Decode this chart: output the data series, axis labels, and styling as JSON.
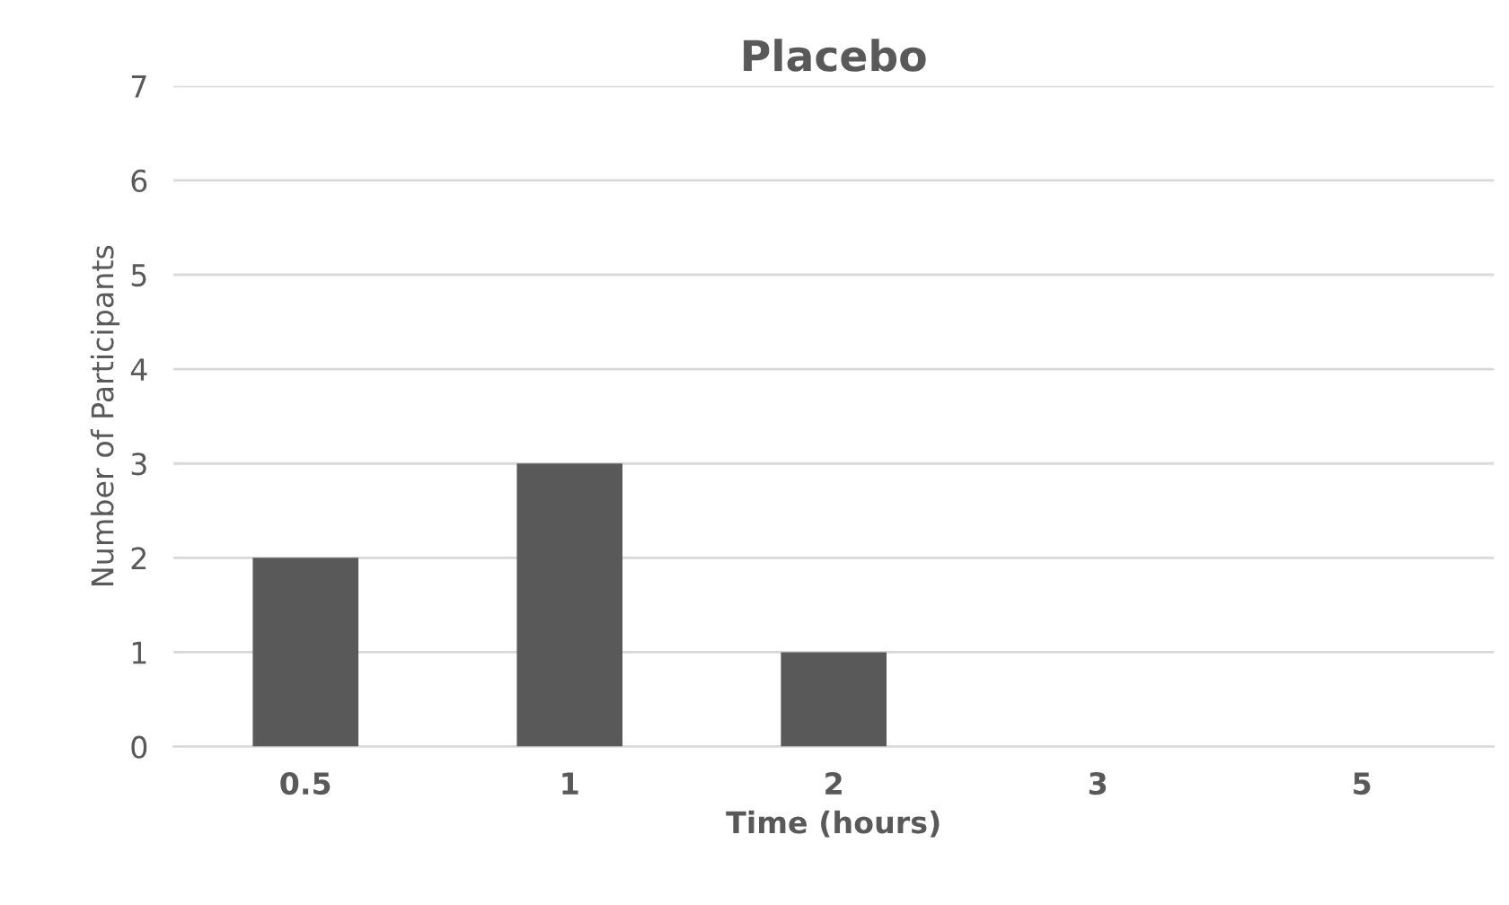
{
  "chart_data": {
    "type": "bar",
    "title": "Placebo",
    "xlabel": "Time (hours)",
    "ylabel": "Number of Participants",
    "categories": [
      "0.5",
      "1",
      "2",
      "3",
      "5"
    ],
    "values": [
      2,
      3,
      1,
      0,
      0
    ],
    "color": "#595959",
    "ylim": [
      0,
      7
    ],
    "yticks": [
      0,
      1,
      2,
      3,
      4,
      5,
      6,
      7
    ],
    "grid": "y",
    "legend": false
  }
}
